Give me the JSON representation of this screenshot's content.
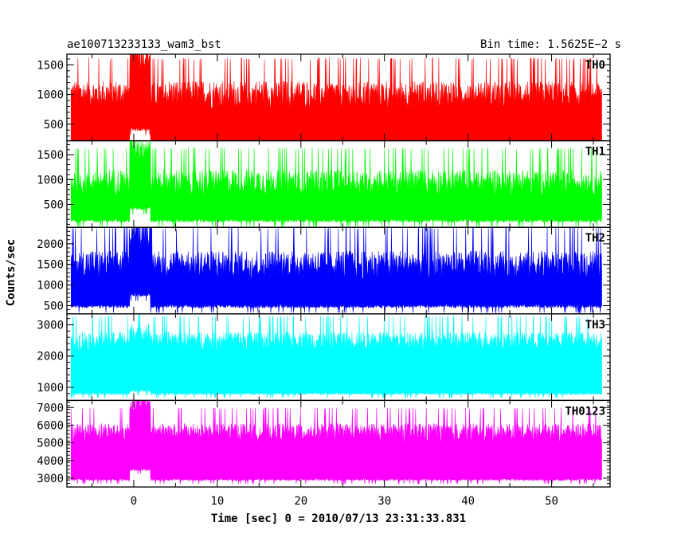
{
  "header": {
    "title": "ae100713233133_wam3_bst",
    "bin_time": "Bin time: 1.5625E−2 s"
  },
  "chart_data": {
    "type": "line",
    "xlabel": "Time [sec] 0 = 2010/07/13 23:31:33.831",
    "ylabel": "Counts/sec",
    "xlim": [
      -8,
      57
    ],
    "x_ticks": [
      0,
      10,
      20,
      30,
      40,
      50
    ],
    "x_range": [
      -7.5,
      56
    ],
    "burst": {
      "start": -0.5,
      "end": 2.0
    },
    "panels": [
      {
        "name": "TH0",
        "color": "#ff0000",
        "ylim": [
          220,
          1680
        ],
        "y_ticks": [
          500,
          1000,
          1500
        ],
        "base": 1000,
        "noise": 260,
        "floor_base": 160,
        "burst_boost": 650
      },
      {
        "name": "TH1",
        "color": "#00ff00",
        "ylim": [
          40,
          1780
        ],
        "y_ticks": [
          500,
          1000,
          1500
        ],
        "base": 950,
        "noise": 290,
        "floor_base": 140,
        "burst_boost": 700
      },
      {
        "name": "TH2",
        "color": "#0000ff",
        "ylim": [
          300,
          2400
        ],
        "y_ticks": [
          500,
          1000,
          1500,
          2000
        ],
        "base": 1500,
        "noise": 380,
        "floor_base": 440,
        "burst_boost": 800
      },
      {
        "name": "TH3",
        "color": "#00ffff",
        "ylim": [
          580,
          3350
        ],
        "y_ticks": [
          1000,
          2000,
          3000
        ],
        "base": 2500,
        "noise": 330,
        "floor_base": 760,
        "burst_boost": 250
      },
      {
        "name": "TH0123",
        "color": "#ff00ff",
        "ylim": [
          2500,
          7400
        ],
        "y_ticks": [
          3000,
          4000,
          5000,
          6000,
          7000
        ],
        "base": 5600,
        "noise": 580,
        "floor_base": 2850,
        "burst_boost": 1600
      }
    ]
  }
}
